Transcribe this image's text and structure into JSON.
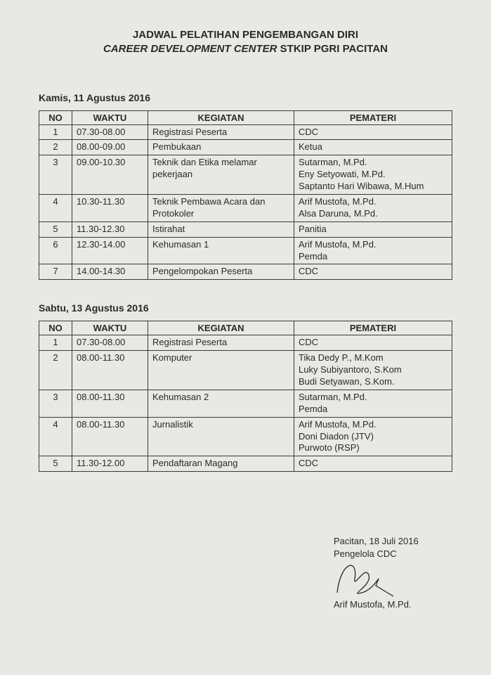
{
  "title": {
    "line1": "JADWAL PELATIHAN PENGEMBANGAN DIRI",
    "line2_italic": "CAREER DEVELOPMENT CENTER",
    "line2_rest": " STKIP PGRI PACITAN"
  },
  "headers": {
    "no": "NO",
    "waktu": "WAKTU",
    "kegiatan": "KEGIATAN",
    "pemateri": "PEMATERI"
  },
  "day1": {
    "date": "Kamis, 11 Agustus 2016",
    "rows": [
      {
        "no": "1",
        "waktu": "07.30-08.00",
        "kegiatan": [
          "Registrasi Peserta"
        ],
        "pemateri": [
          "CDC"
        ]
      },
      {
        "no": "2",
        "waktu": "08.00-09.00",
        "kegiatan": [
          "Pembukaan"
        ],
        "pemateri": [
          "Ketua"
        ]
      },
      {
        "no": "3",
        "waktu": "09.00-10.30",
        "kegiatan": [
          "Teknik dan Etika melamar",
          "pekerjaan"
        ],
        "pemateri": [
          "Sutarman, M.Pd.",
          "Eny Setyowati, M.Pd.",
          "Saptanto Hari Wibawa, M.Hum"
        ]
      },
      {
        "no": "4",
        "waktu": "10.30-11.30",
        "kegiatan": [
          "Teknik Pembawa Acara dan",
          "Protokoler"
        ],
        "pemateri": [
          "Arif Mustofa, M.Pd.",
          "Alsa Daruna, M.Pd."
        ]
      },
      {
        "no": "5",
        "waktu": "11.30-12.30",
        "kegiatan": [
          "Istirahat"
        ],
        "pemateri": [
          "Panitia"
        ]
      },
      {
        "no": "6",
        "waktu": "12.30-14.00",
        "kegiatan": [
          "Kehumasan 1"
        ],
        "pemateri": [
          "Arif Mustofa, M.Pd.",
          "Pemda"
        ]
      },
      {
        "no": "7",
        "waktu": "14.00-14.30",
        "kegiatan": [
          "Pengelompokan Peserta"
        ],
        "pemateri": [
          "CDC"
        ]
      }
    ]
  },
  "day2": {
    "date": "Sabtu, 13 Agustus 2016",
    "rows": [
      {
        "no": "1",
        "waktu": "07.30-08.00",
        "kegiatan": [
          "Registrasi Peserta"
        ],
        "pemateri": [
          "CDC"
        ]
      },
      {
        "no": "2",
        "waktu": "08.00-11.30",
        "kegiatan": [
          "Komputer"
        ],
        "pemateri": [
          "Tika Dedy P., M.Kom",
          "Luky Subiyantoro, S.Kom",
          "Budi Setyawan, S.Kom."
        ]
      },
      {
        "no": "3",
        "waktu": "08.00-11.30",
        "kegiatan": [
          "Kehumasan 2"
        ],
        "pemateri": [
          "Sutarman, M.Pd.",
          "Pemda"
        ]
      },
      {
        "no": "4",
        "waktu": "08.00-11.30",
        "kegiatan": [
          "Jurnalistik"
        ],
        "pemateri": [
          "Arif Mustofa, M.Pd.",
          "Doni Diadon (JTV)",
          "Purwoto (RSP)"
        ]
      },
      {
        "no": "5",
        "waktu": "11.30-12.00",
        "kegiatan": [
          "Pendaftaran Magang"
        ],
        "pemateri": [
          "CDC"
        ]
      }
    ]
  },
  "signature": {
    "place_date": "Pacitan, 18 Juli 2016",
    "role": "Pengelola CDC",
    "name": "Arif Mustofa, M.Pd."
  },
  "style": {
    "bg": "#e8e8e5",
    "text": "#2a2a2a",
    "border": "#3a3a3a",
    "font_family": "Arial",
    "title_fontsize": 15,
    "body_fontsize": 13,
    "col_widths": {
      "no": 34,
      "waktu": 95,
      "kegiatan": 195
    }
  }
}
